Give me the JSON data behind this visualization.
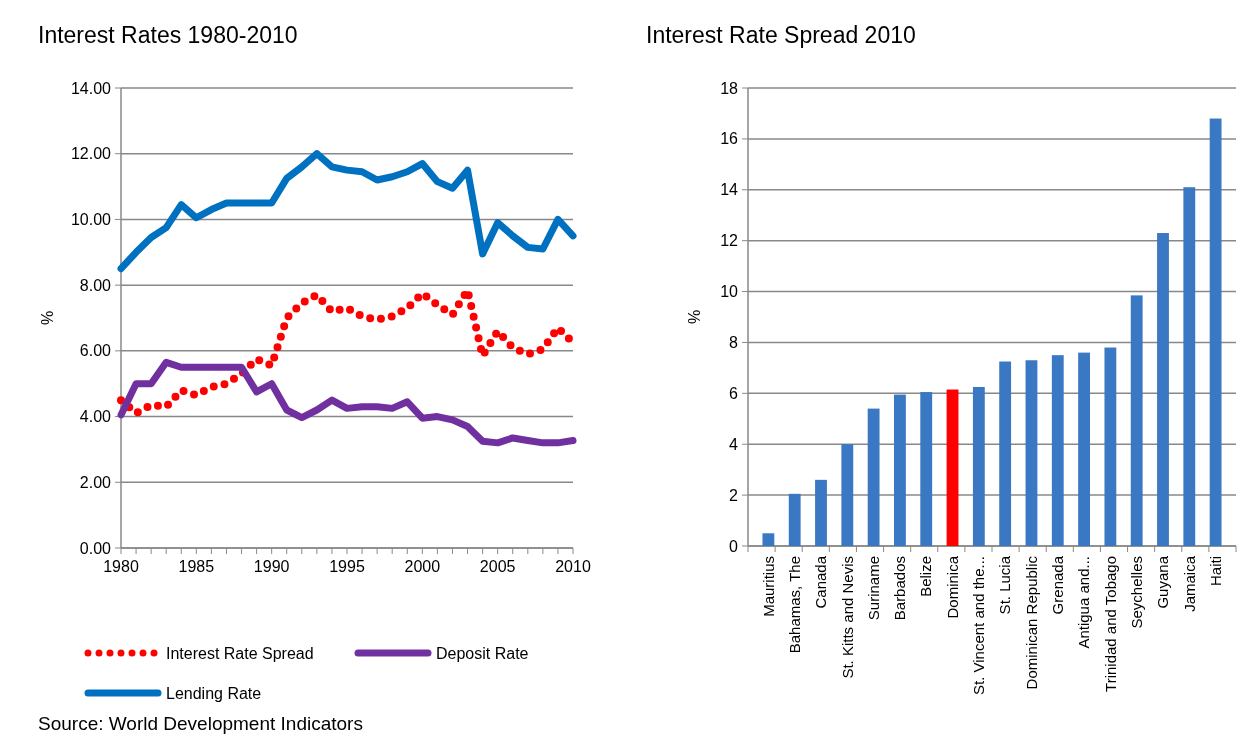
{
  "chart_data": [
    {
      "type": "line",
      "title": "Interest Rates 1980-2010",
      "ylabel": "%",
      "x": [
        1980,
        1981,
        1982,
        1983,
        1984,
        1985,
        1986,
        1987,
        1988,
        1989,
        1990,
        1991,
        1992,
        1993,
        1994,
        1995,
        1996,
        1997,
        1998,
        1999,
        2000,
        2001,
        2002,
        2003,
        2004,
        2005,
        2006,
        2007,
        2008,
        2009,
        2010
      ],
      "series": [
        {
          "name": "Interest Rate Spread",
          "color": "#ff0000",
          "line_style": "dotted",
          "values": [
            4.5,
            4.1,
            4.35,
            4.3,
            4.8,
            4.65,
            4.9,
            5.0,
            5.3,
            5.75,
            5.55,
            7.0,
            7.45,
            7.7,
            7.2,
            7.3,
            7.05,
            6.95,
            7.05,
            7.3,
            7.75,
            7.4,
            7.1,
            7.85,
            5.85,
            6.6,
            6.1,
            5.9,
            6.05,
            6.7,
            6.25
          ]
        },
        {
          "name": "Deposit Rate",
          "color": "#7030a0",
          "line_style": "solid",
          "values": [
            4.05,
            5.0,
            5.0,
            5.65,
            5.5,
            5.5,
            5.5,
            5.5,
            5.5,
            4.75,
            5.0,
            4.2,
            3.97,
            4.2,
            4.5,
            4.25,
            4.3,
            4.3,
            4.25,
            4.45,
            3.95,
            4.0,
            3.9,
            3.7,
            3.25,
            3.2,
            3.35,
            3.27,
            3.2,
            3.2,
            3.27
          ]
        },
        {
          "name": "Lending Rate",
          "color": "#0070c0",
          "line_style": "solid",
          "values": [
            8.5,
            9.0,
            9.45,
            9.75,
            10.45,
            10.05,
            10.3,
            10.5,
            10.5,
            10.5,
            10.5,
            11.25,
            11.6,
            12.0,
            11.6,
            11.5,
            11.45,
            11.2,
            11.3,
            11.45,
            11.7,
            11.15,
            10.95,
            11.5,
            8.95,
            9.9,
            9.5,
            9.15,
            9.1,
            10.0,
            9.5
          ]
        }
      ],
      "xlim": [
        1980,
        2010
      ],
      "xticks": [
        1980,
        {
          "value": 1981,
          "label": null
        },
        {
          "value": 1982,
          "label": null
        },
        {
          "value": 1983,
          "label": null
        },
        {
          "value": 1984,
          "label": null
        },
        1985,
        {
          "value": 1986,
          "label": null
        },
        {
          "value": 1987,
          "label": null
        },
        {
          "value": 1988,
          "label": null
        },
        {
          "value": 1989,
          "label": null
        },
        1990,
        {
          "value": 1991,
          "label": null
        },
        {
          "value": 1992,
          "label": null
        },
        {
          "value": 1993,
          "label": null
        },
        {
          "value": 1994,
          "label": null
        },
        1995,
        {
          "value": 1996,
          "label": null
        },
        {
          "value": 1997,
          "label": null
        },
        {
          "value": 1998,
          "label": null
        },
        {
          "value": 1999,
          "label": null
        },
        2000,
        {
          "value": 2001,
          "label": null
        },
        {
          "value": 2002,
          "label": null
        },
        {
          "value": 2003,
          "label": null
        },
        {
          "value": 2004,
          "label": null
        },
        2005,
        {
          "value": 2006,
          "label": null
        },
        {
          "value": 2007,
          "label": null
        },
        {
          "value": 2008,
          "label": null
        },
        {
          "value": 2009,
          "label": null
        },
        2010
      ],
      "ylim": [
        0,
        14
      ],
      "yticks": [
        {
          "value": 0,
          "label": "0.00"
        },
        {
          "value": 2,
          "label": "2.00"
        },
        {
          "value": 4,
          "label": "4.00"
        },
        {
          "value": 6,
          "label": "6.00"
        },
        {
          "value": 8,
          "label": "8.00"
        },
        {
          "value": 10,
          "label": "10.00"
        },
        {
          "value": 12,
          "label": "12.00"
        },
        {
          "value": 14,
          "label": "14.00"
        }
      ],
      "grid": "y",
      "legend": "bottom",
      "marker": "none",
      "annotations": [
        "Source: World Development Indicators"
      ]
    },
    {
      "type": "bar",
      "title": "Interest Rate Spread 2010",
      "ylabel": "%",
      "categories": [
        "Mauritius",
        "Bahamas, The",
        "Canada",
        "St. Kitts and Nevis",
        "Suriname",
        "Barbados",
        "Belize",
        "Dominica",
        "St. Vincent and the...",
        "St. Lucia",
        "Dominican Republic",
        "Grenada",
        "Antigua and...",
        "Trinidad and Tobago",
        "Seychelles",
        "Guyana",
        "Jamaica",
        "Haiti"
      ],
      "values": [
        0.5,
        2.05,
        2.6,
        4.0,
        5.4,
        5.95,
        6.05,
        6.15,
        6.25,
        7.25,
        7.3,
        7.5,
        7.6,
        7.8,
        9.85,
        12.3,
        14.1,
        16.8
      ],
      "colors": [
        "#3a78c3",
        "#3a78c3",
        "#3a78c3",
        "#3a78c3",
        "#3a78c3",
        "#3a78c3",
        "#3a78c3",
        "#ff0000",
        "#3a78c3",
        "#3a78c3",
        "#3a78c3",
        "#3a78c3",
        "#3a78c3",
        "#3a78c3",
        "#3a78c3",
        "#3a78c3",
        "#3a78c3",
        "#3a78c3"
      ],
      "ylim": [
        0,
        18
      ],
      "yticks": [
        0,
        2,
        4,
        6,
        8,
        10,
        12,
        14,
        16,
        18
      ],
      "grid": "y"
    }
  ]
}
